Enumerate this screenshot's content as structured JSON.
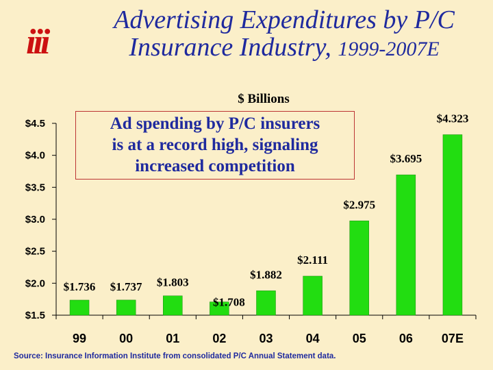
{
  "logo": "iii",
  "title": {
    "line1": "Advertising Expenditures by P/C",
    "line2": "Insurance Industry,",
    "years": "1999-2007E"
  },
  "callout": {
    "line1": "Ad spending by P/C insurers",
    "line2": "is at a record high, signaling",
    "line3": "increased competition"
  },
  "source": "Source: Insurance Information Institute from consolidated P/C Annual Statement data.",
  "colors": {
    "bar": "#22dd11",
    "title": "#1f2a9e",
    "logo": "#cc1111",
    "background": "#fbefc9"
  },
  "chart_data": {
    "type": "bar",
    "ylabel": "$ Billions",
    "ylim": [
      1.5,
      4.5
    ],
    "yticks": [
      1.5,
      2.0,
      2.5,
      3.0,
      3.5,
      4.0,
      4.5
    ],
    "ytick_labels": [
      "$1.5",
      "$2.0",
      "$2.5",
      "$3.0",
      "$3.5",
      "$4.0",
      "$4.5"
    ],
    "categories": [
      "99",
      "00",
      "01",
      "02",
      "03",
      "04",
      "05",
      "06",
      "07E"
    ],
    "values": [
      1.736,
      1.737,
      1.803,
      1.708,
      1.882,
      2.111,
      2.975,
      3.695,
      4.323
    ],
    "data_labels": [
      "$1.736",
      "$1.737",
      "$1.803",
      "$1.708",
      "$1.882",
      "$2.111",
      "$2.975",
      "$3.695",
      "$4.323"
    ],
    "grid": false,
    "legend": "none"
  }
}
